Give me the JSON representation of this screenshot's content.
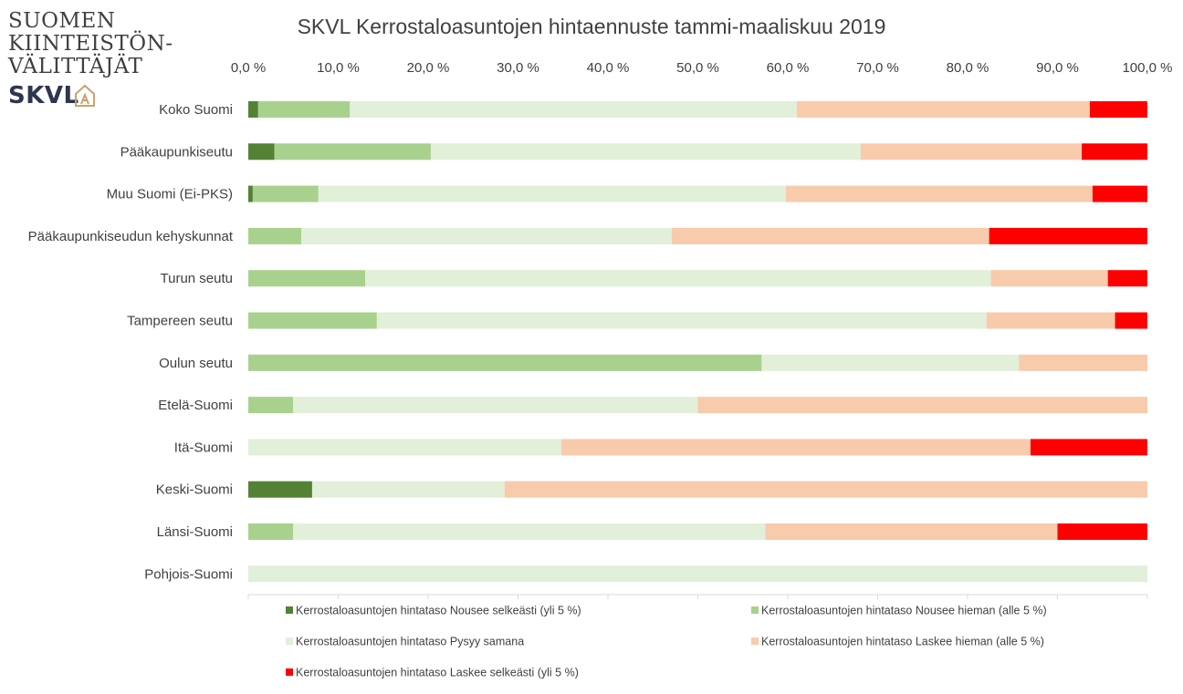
{
  "logo": {
    "line1": "SUOMEN",
    "line2": "KIINTEISTÖN-",
    "line3": "VÄLITTÄJÄT",
    "brand": "SKVL"
  },
  "colors": {
    "nousee_selkeasti": "#548235",
    "nousee_hieman": "#a9d18e",
    "pysyy_samana": "#e2efd9",
    "laskee_hieman": "#f8cbad",
    "laskee_selkeasti": "#ff0000",
    "logo_brand": "#2e3650",
    "logo_accent": "#c9a36b"
  },
  "chart_data": {
    "type": "bar",
    "orientation": "horizontal-stacked-100",
    "title": "SKVL Kerrostaloasuntojen hintaennuste tammi-maaliskuu 2019",
    "xlim": [
      0,
      100
    ],
    "ticks": [
      "0,0 %",
      "10,0 %",
      "20,0 %",
      "30,0 %",
      "40,0 %",
      "50,0 %",
      "60,0 %",
      "70,0 %",
      "80,0 %",
      "90,0 %",
      "100,0 %"
    ],
    "x_axis_position": "top",
    "grid": false,
    "legend_position": "bottom",
    "categories": [
      "Koko Suomi",
      "Pääkaupunkiseutu",
      "Muu Suomi (Ei-PKS)",
      "Pääkaupunkiseudun kehyskunnat",
      "Turun seutu",
      "Tampereen seutu",
      "Oulun seutu",
      "Etelä-Suomi",
      "Itä-Suomi",
      "Keski-Suomi",
      "Länsi-Suomi",
      "Pohjois-Suomi"
    ],
    "series": [
      {
        "name": "Kerrostaloasuntojen hintataso Nousee selkeästi (yli 5 %)",
        "color_key": "nousee_selkeasti",
        "values": [
          1.1,
          2.9,
          0.5,
          0,
          0,
          0,
          0,
          0,
          0,
          7.1,
          0,
          0
        ]
      },
      {
        "name": "Kerrostaloasuntojen hintataso Nousee hieman (alle 5 %)",
        "color_key": "nousee_hieman",
        "values": [
          10.2,
          17.4,
          7.3,
          5.9,
          13.0,
          14.3,
          57.1,
          5.0,
          0,
          0,
          5.0,
          0
        ]
      },
      {
        "name": "Kerrostaloasuntojen hintataso Pysyy samana",
        "color_key": "pysyy_samana",
        "values": [
          49.7,
          47.8,
          52.0,
          41.2,
          69.6,
          67.8,
          28.6,
          45.0,
          34.8,
          21.4,
          52.5,
          100
        ]
      },
      {
        "name": "Kerrostaloasuntojen hintataso Laskee hieman (alle 5 %)",
        "color_key": "laskee_hieman",
        "values": [
          32.6,
          24.6,
          34.1,
          35.3,
          13.0,
          14.3,
          14.3,
          50.0,
          52.2,
          71.5,
          32.5,
          0
        ]
      },
      {
        "name": "Kerrostaloasuntojen hintataso Laskee selkeästi (yli 5 %)",
        "color_key": "laskee_selkeasti",
        "values": [
          6.4,
          7.3,
          6.1,
          17.6,
          4.4,
          3.6,
          0,
          0,
          13.0,
          0,
          10.0,
          0
        ]
      }
    ]
  }
}
